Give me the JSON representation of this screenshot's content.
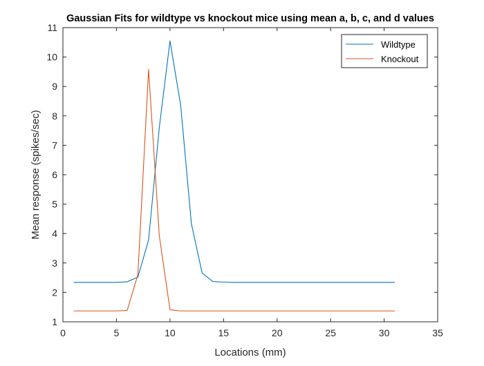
{
  "chart_data": {
    "type": "line",
    "title": "Gaussian Fits for wildtype vs knockout mice using mean a, b, c, and d values",
    "xlabel": "Locations (mm)",
    "ylabel": "Mean response (spikes/sec)",
    "xlim": [
      0,
      35
    ],
    "ylim": [
      1,
      11
    ],
    "xticks": [
      0,
      5,
      10,
      15,
      20,
      25,
      30,
      35
    ],
    "yticks": [
      1,
      2,
      3,
      4,
      5,
      6,
      7,
      8,
      9,
      10,
      11
    ],
    "grid": false,
    "legend_position": "top-right",
    "x": [
      1,
      2,
      3,
      4,
      5,
      6,
      7,
      8,
      9,
      10,
      11,
      12,
      13,
      14,
      15,
      16,
      17,
      18,
      19,
      20,
      21,
      22,
      23,
      24,
      25,
      26,
      27,
      28,
      29,
      30,
      31
    ],
    "series": [
      {
        "name": "Wildtype",
        "color": "#0072BD",
        "values": [
          2.34,
          2.34,
          2.34,
          2.34,
          2.34,
          2.36,
          2.52,
          3.78,
          7.6,
          10.55,
          8.35,
          4.33,
          2.66,
          2.37,
          2.35,
          2.34,
          2.34,
          2.34,
          2.34,
          2.34,
          2.34,
          2.34,
          2.34,
          2.34,
          2.34,
          2.34,
          2.34,
          2.34,
          2.34,
          2.34,
          2.34
        ]
      },
      {
        "name": "Knockout",
        "color": "#D95319",
        "values": [
          1.37,
          1.37,
          1.37,
          1.37,
          1.37,
          1.39,
          2.6,
          9.58,
          3.93,
          1.41,
          1.37,
          1.37,
          1.37,
          1.37,
          1.37,
          1.37,
          1.37,
          1.37,
          1.37,
          1.37,
          1.37,
          1.37,
          1.37,
          1.37,
          1.37,
          1.37,
          1.37,
          1.37,
          1.37,
          1.37,
          1.37
        ]
      }
    ]
  }
}
